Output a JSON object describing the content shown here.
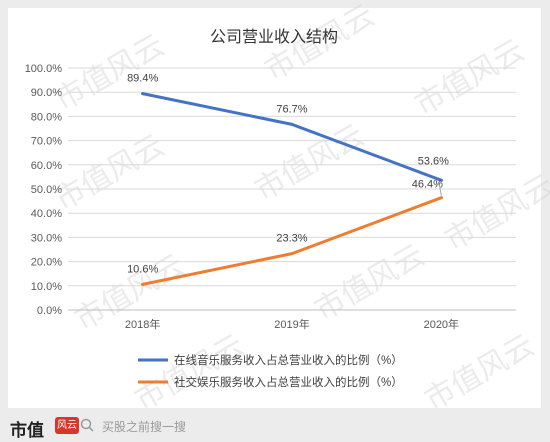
{
  "chart_data": {
    "type": "line",
    "title": "公司营业收入结构",
    "categories": [
      "2018年",
      "2019年",
      "2020年"
    ],
    "yticks": [
      "0.0%",
      "10.0%",
      "20.0%",
      "30.0%",
      "40.0%",
      "50.0%",
      "60.0%",
      "70.0%",
      "80.0%",
      "90.0%",
      "100.0%"
    ],
    "ylim": [
      0,
      100
    ],
    "grid": true,
    "legend_position": "bottom",
    "series": [
      {
        "name": "在线音乐服务收入占总营业收入的比例（%）",
        "values": [
          89.4,
          76.7,
          53.6
        ],
        "labels": [
          "89.4%",
          "76.7%",
          "53.6%"
        ],
        "color": "#4472c4"
      },
      {
        "name": "社交娱乐服务收入占总营业收入的比例（%）",
        "values": [
          10.6,
          23.3,
          46.4
        ],
        "labels": [
          "10.6%",
          "23.3%",
          "46.4%"
        ],
        "color": "#ed7d31"
      }
    ]
  },
  "watermark": "市值风云",
  "footer": {
    "brand_text": "市值",
    "brand_mark": "风云",
    "search_icon": "search-icon",
    "search_placeholder": "买股之前搜一搜"
  }
}
